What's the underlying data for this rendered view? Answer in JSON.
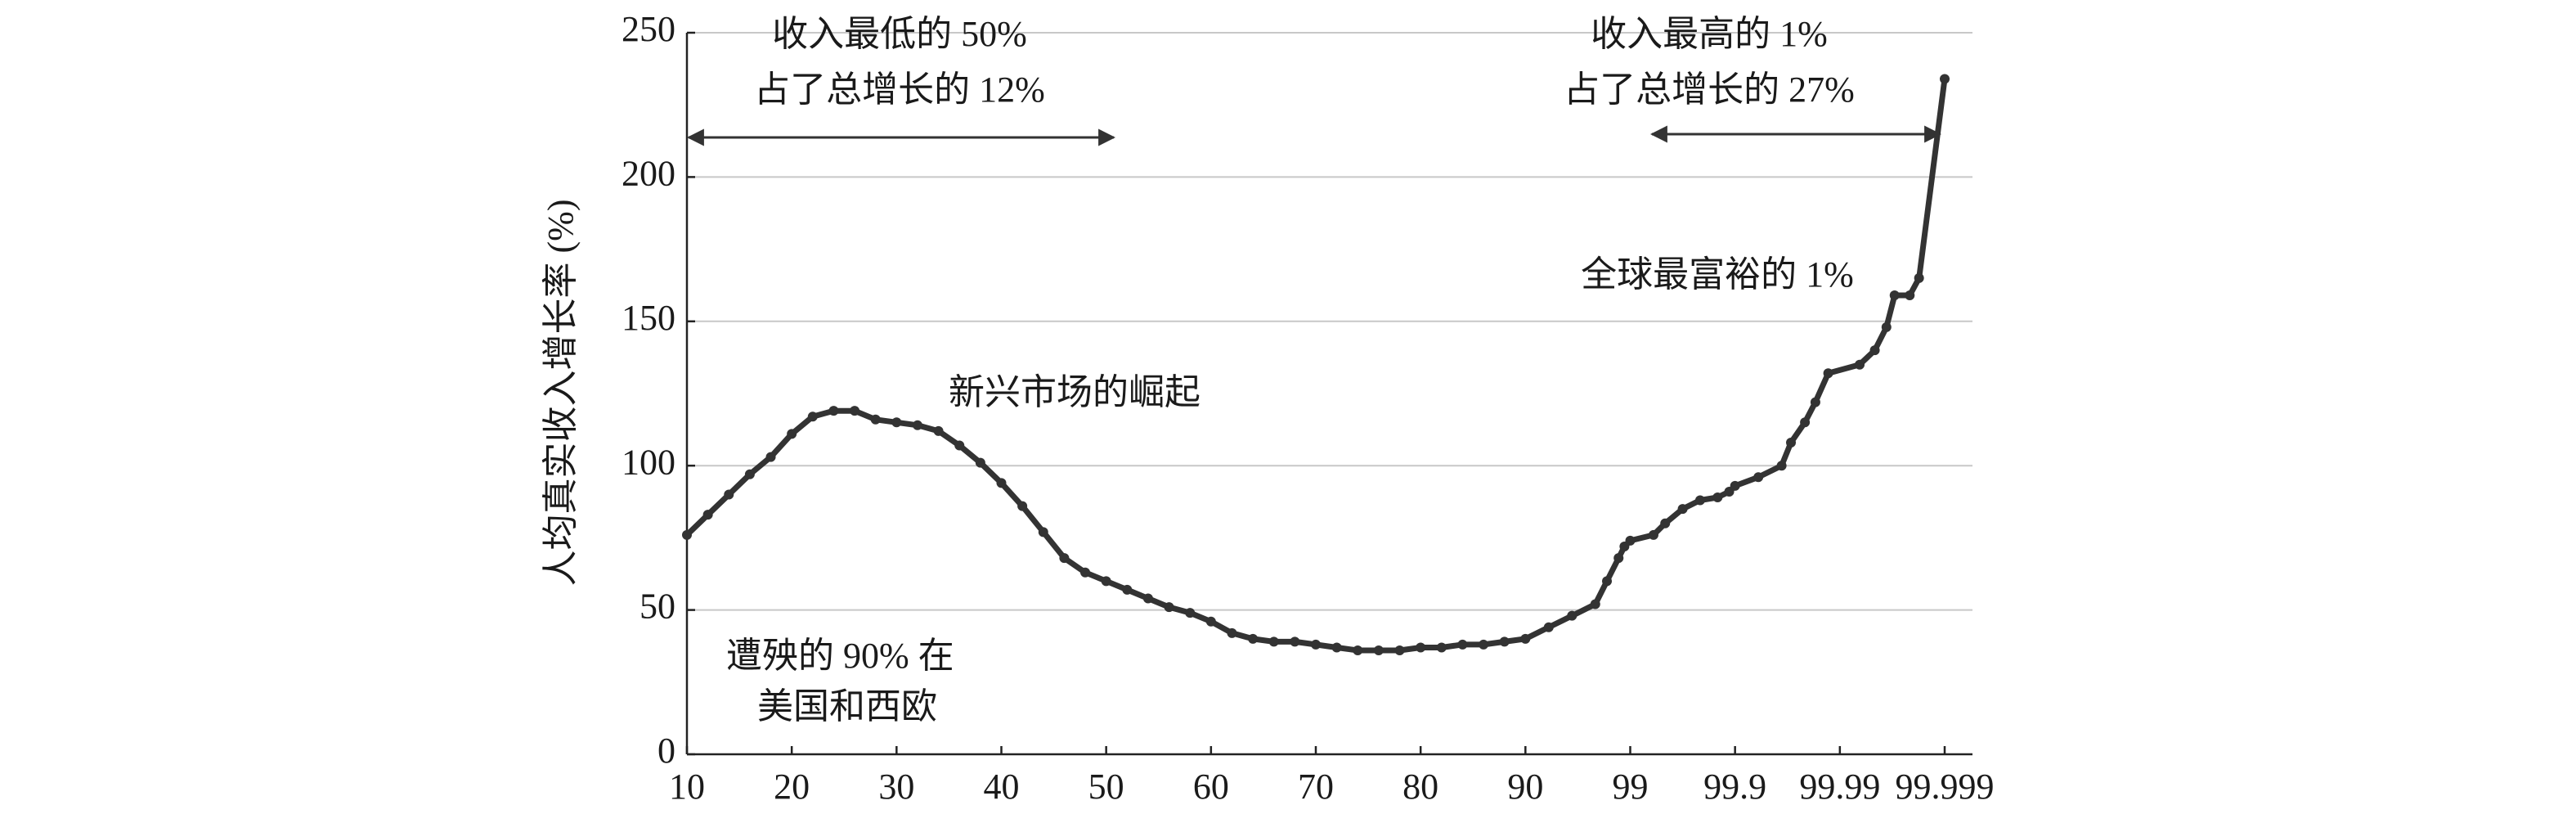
{
  "chart_data": {
    "type": "line",
    "y_label": "人均真实收入增长率 (%)",
    "x": [
      10,
      12,
      14,
      16,
      18,
      20,
      22,
      24,
      26,
      28,
      30,
      32,
      34,
      36,
      38,
      40,
      42,
      44,
      46,
      48,
      50,
      52,
      54,
      56,
      58,
      60,
      62,
      64,
      66,
      68,
      70,
      72,
      74,
      76,
      78,
      80,
      82,
      84,
      86,
      88,
      90,
      92,
      94,
      96,
      97,
      98,
      98.5,
      99,
      99.2,
      99.3,
      99.45,
      99.6,
      99.75,
      99.85,
      99.9,
      99.92,
      99.94,
      99.948,
      99.96,
      99.969,
      99.98,
      99.9917,
      99.993,
      99.994,
      99.9947,
      99.996,
      99.9968,
      99.999
    ],
    "values": [
      76,
      83,
      90,
      97,
      103,
      111,
      117,
      119,
      119,
      116,
      115,
      114,
      112,
      107,
      101,
      94,
      86,
      77,
      68,
      63,
      60,
      57,
      54,
      51,
      49,
      46,
      42,
      40,
      39,
      39,
      38,
      37,
      36,
      36,
      36,
      37,
      37,
      38,
      38,
      39,
      40,
      44,
      48,
      52,
      60,
      68,
      72,
      74,
      76,
      80,
      85,
      88,
      89,
      91,
      93,
      96,
      100,
      108,
      115,
      122,
      132,
      135,
      140,
      148,
      159,
      159,
      165,
      234
    ],
    "color": "#333333",
    "xlim": [
      10,
      99.999
    ],
    "xticks": [
      10,
      20,
      30,
      40,
      50,
      60,
      70,
      80,
      90,
      99,
      99.9,
      99.99,
      99.999
    ],
    "xscale": "tick-equidistant",
    "ylim": [
      0,
      250
    ],
    "yticks": [
      0,
      50,
      100,
      150,
      200,
      250
    ],
    "grid": true,
    "annotations": [
      {
        "lines": [
          "收入最低的 50%",
          "占了总增长的 12%"
        ]
      },
      {
        "lines": [
          "收入最高的 1%",
          "占了总增长的 27%"
        ]
      },
      {
        "lines": [
          "全球最富裕的 1%"
        ]
      },
      {
        "lines": [
          "新兴市场的崛起"
        ]
      },
      {
        "lines": [
          "遭殃的 90% 在",
          "美国和西欧"
        ]
      }
    ]
  }
}
